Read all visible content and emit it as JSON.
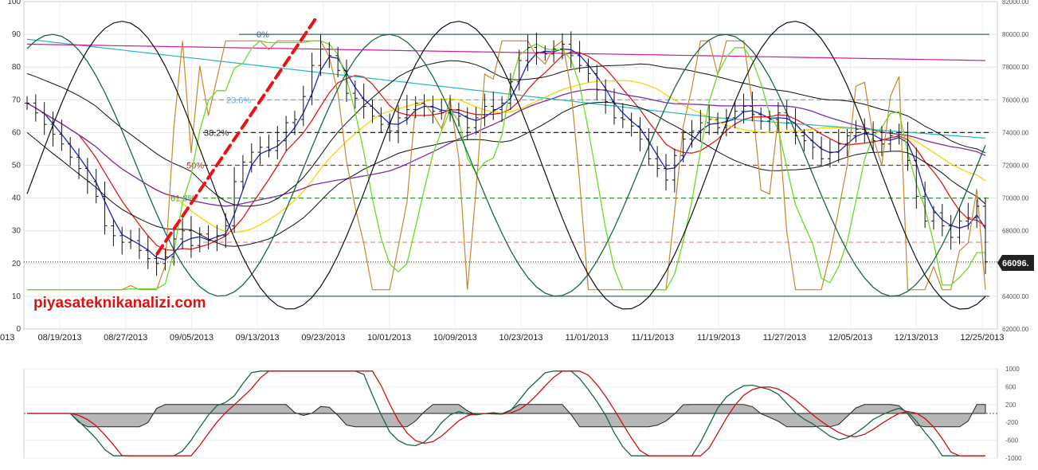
{
  "chart_data": [
    {
      "type": "line",
      "title": "",
      "watermark": "piyasateknikanalizi.com",
      "left_axis": {
        "min": 0,
        "max": 100,
        "ticks": [
          "0",
          "10",
          "20",
          "30",
          "40",
          "50",
          "60",
          "70",
          "80",
          "90",
          "100"
        ]
      },
      "right_axis": {
        "min": 62000,
        "max": 82000,
        "ticks": [
          "62000.00",
          "64000.00",
          "66000.00",
          "68000.00",
          "70000.00",
          "72000.00",
          "74000.00",
          "76000.00",
          "78000.00",
          "80000.00",
          "82000.00"
        ]
      },
      "x_dates": [
        "08/19/2013",
        "08/27/2013",
        "09/05/2013",
        "09/13/2013",
        "09/23/2013",
        "10/01/2013",
        "10/09/2013",
        "10/23/2013",
        "11/01/2013",
        "11/11/2013",
        "11/19/2013",
        "11/27/2013",
        "12/05/2013",
        "12/13/2013",
        "12/25/2013"
      ],
      "x_left_partial": "013",
      "last_price_label": "66096.",
      "last_price": 66096,
      "grid": true,
      "fibonacci": {
        "levels": [
          {
            "label": "0%",
            "price": 80000,
            "color": "#336677"
          },
          {
            "label": "23.6%",
            "price": 76000,
            "color": "#66aacc"
          },
          {
            "label": "38.2%",
            "price": 74000,
            "color": "#222222"
          },
          {
            "label": "50%",
            "price": 72000,
            "color": "#993333"
          },
          {
            "label": "61.8%",
            "price": 70000,
            "color": "#339933"
          },
          {
            "label": "",
            "price": 67300,
            "color": "#dd8888"
          },
          {
            "label": "",
            "price": 64000,
            "color": "#336677"
          }
        ]
      },
      "trendline": {
        "color": "#ee1111",
        "from": {
          "x": 0.137,
          "price": 66600
        },
        "to": {
          "x": 0.299,
          "price": 80900
        }
      },
      "ohlc_closes": [
        75800,
        75200,
        74500,
        73900,
        73300,
        72500,
        71800,
        71000,
        70100,
        68300,
        67700,
        67300,
        67400,
        66800,
        66300,
        66000,
        66400,
        67500,
        68000,
        67100,
        67800,
        67400,
        67700,
        68300,
        71000,
        72200,
        72800,
        73100,
        72900,
        73500,
        74600,
        74800,
        76200,
        78100,
        79100,
        78700,
        77800,
        76400,
        76100,
        75600,
        75000,
        74500,
        74100,
        74900,
        75400,
        75800,
        75600,
        75300,
        75200,
        75400,
        75000,
        74300,
        74900,
        75600,
        75400,
        75800,
        77100,
        78400,
        79200,
        78900,
        78800,
        79100,
        79400,
        78700,
        78100,
        77600,
        76600,
        75900,
        74900,
        74800,
        74400,
        73600,
        72400,
        71800,
        71100,
        72600,
        73600,
        74100,
        74600,
        74800,
        74300,
        74900,
        75300,
        75600,
        75100,
        74700,
        74800,
        75200,
        74600,
        73800,
        73500,
        73100,
        72400,
        72800,
        73300,
        73800,
        74200,
        73900,
        73500,
        73300,
        73800,
        74000,
        72300,
        70100,
        68600,
        69100,
        68300,
        67600,
        68600,
        68800,
        69500,
        66100
      ]
    },
    {
      "type": "line",
      "title": "",
      "left_axis": {
        "min": -1000,
        "max": 1000,
        "ticks": [
          "1000",
          "600",
          "200",
          "-200",
          "-600",
          "-1000"
        ]
      },
      "zero_line": true
    }
  ],
  "colors": {
    "bars": "#111111",
    "ma_fast": "#1a23cc",
    "ma_mid": "#e01a1a",
    "ma_yellow": "#f2d800",
    "ma_purple": "#7b2bb0",
    "ma_cyan": "#27b5c0",
    "ma_magenta": "#cc1a99",
    "stoch": "#c8862a",
    "green_light": "#66dd22",
    "green_dark": "#1a6644",
    "envelope": "#111111",
    "macd_green": "#1a6644",
    "macd_red": "#cc1111",
    "hist": "#999999"
  }
}
